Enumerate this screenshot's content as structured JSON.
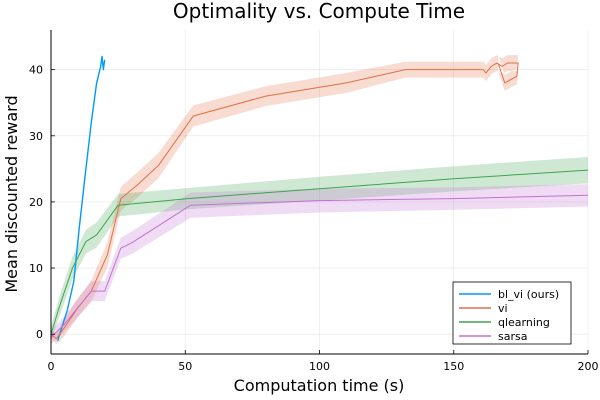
{
  "chart_data": {
    "type": "line",
    "title": "Optimality vs. Compute Time",
    "xlabel": "Computation time (s)",
    "ylabel": "Mean discounted reward",
    "xlim": [
      0,
      200
    ],
    "ylim": [
      -3,
      46
    ],
    "x_ticks": [
      0,
      50,
      100,
      150,
      200
    ],
    "y_ticks": [
      0,
      10,
      20,
      30,
      40
    ],
    "x_tick_labels": [
      "0",
      "50",
      "100",
      "150",
      "200"
    ],
    "y_tick_labels": [
      "0",
      "10",
      "20",
      "30",
      "40"
    ],
    "grid": true,
    "legend_position": "bottom-right",
    "series": [
      {
        "name": "bl_vi (ours)",
        "color": "#009AFA",
        "band": false,
        "x": [
          2.5,
          4,
          6,
          8.5,
          10.5,
          13,
          15,
          17,
          18.5,
          19,
          19.5,
          20
        ],
        "y": [
          -1,
          1,
          3.5,
          8,
          16,
          25,
          32,
          38,
          40.5,
          42,
          40,
          41.5
        ]
      },
      {
        "name": "vi",
        "color": "#E26F46",
        "band": true,
        "x": [
          0,
          2,
          5,
          10,
          15,
          21,
          26,
          32,
          40,
          53,
          80,
          110,
          132,
          150,
          161,
          162,
          164,
          166,
          168,
          170,
          172,
          174,
          173.5,
          169,
          166.5
        ],
        "y": [
          0,
          -0.7,
          1,
          4,
          6.5,
          12,
          20.5,
          22.5,
          25.5,
          33,
          36,
          38,
          40,
          40,
          40,
          39.5,
          40.5,
          41,
          40.5,
          41,
          41,
          41,
          39,
          38,
          41
        ],
        "lower": [
          -0.6,
          -1.5,
          -0.3,
          2.6,
          4.9,
          10.1,
          18.7,
          20.6,
          23.6,
          31.4,
          34.5,
          36.5,
          38.8,
          38.8,
          38.8,
          38.3,
          39.3,
          39.8,
          39.3,
          39.8,
          39.8,
          39.8,
          37.8,
          36.8,
          39.8
        ],
        "upper": [
          0.6,
          0.1,
          2.3,
          5.4,
          8.1,
          13.9,
          22.3,
          24.4,
          27.4,
          34.6,
          37.5,
          39.5,
          41.2,
          41.2,
          41.2,
          40.7,
          41.7,
          42.2,
          41.7,
          42.2,
          42.2,
          42.2,
          40.2,
          39.2,
          42.2
        ]
      },
      {
        "name": "qlearning",
        "color": "#3EA44E",
        "band": true,
        "x": [
          0,
          3,
          8,
          13,
          17,
          25,
          51,
          100,
          150,
          200
        ],
        "y": [
          0,
          4,
          10,
          14,
          15,
          19.5,
          20.5,
          22,
          23.5,
          24.8
        ],
        "lower": [
          -1,
          2.5,
          8.3,
          12.2,
          13.1,
          17.8,
          18.9,
          20.2,
          21.6,
          22.8
        ],
        "upper": [
          1,
          5.5,
          11.7,
          15.8,
          16.9,
          21.2,
          22.1,
          23.8,
          25.4,
          26.8
        ]
      },
      {
        "name": "sarsa",
        "color": "#C271D2",
        "band": true,
        "x": [
          0,
          5,
          10,
          15,
          17,
          20,
          26,
          30,
          52,
          100,
          150,
          200
        ],
        "y": [
          -0.5,
          1.5,
          4,
          6.5,
          6.5,
          6.5,
          13,
          13.8,
          19.5,
          20.2,
          20.5,
          21
        ],
        "lower": [
          -1.5,
          0.3,
          2.6,
          5,
          5,
          5,
          11.4,
          12.1,
          17.6,
          18.4,
          18.8,
          19.3
        ],
        "upper": [
          0.5,
          2.7,
          5.4,
          8,
          8,
          8,
          14.6,
          15.5,
          21.4,
          22,
          22.2,
          22.7
        ]
      }
    ]
  }
}
